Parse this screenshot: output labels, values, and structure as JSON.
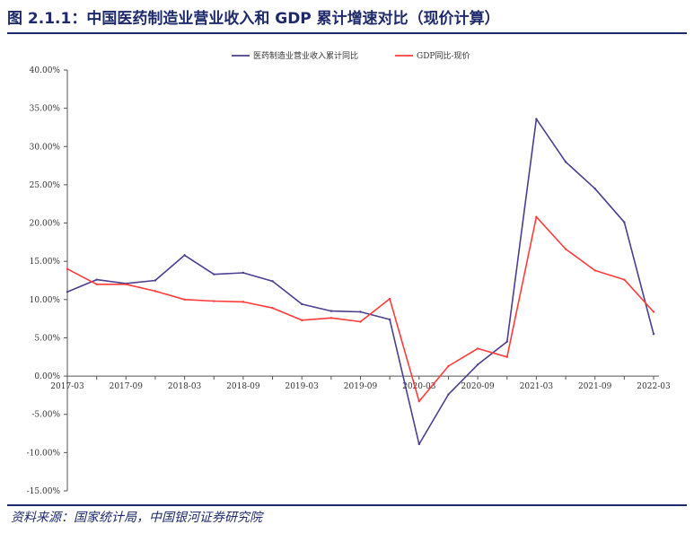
{
  "header": {
    "title": "图 2.1.1：中国医药制造业营业收入和 GDP 累计增速对比（现价计算）"
  },
  "footer": {
    "source": "资料来源：国家统计局，中国银河证券研究院"
  },
  "chart_data": {
    "type": "line",
    "x": [
      "2017-03",
      "2017-06",
      "2017-09",
      "2017-12",
      "2018-03",
      "2018-06",
      "2018-09",
      "2018-12",
      "2019-03",
      "2019-06",
      "2019-09",
      "2019-12",
      "2020-03",
      "2020-06",
      "2020-09",
      "2020-12",
      "2021-03",
      "2021-06",
      "2021-09",
      "2021-12",
      "2022-03"
    ],
    "xtick_labels": [
      "2017-03",
      "2017-09",
      "2018-03",
      "2018-09",
      "2019-03",
      "2019-09",
      "2020-03",
      "2020-09",
      "2021-03",
      "2021-09",
      "2022-03"
    ],
    "ylim": [
      -15,
      40
    ],
    "ytick_labels": [
      "40.00%",
      "35.00%",
      "30.00%",
      "25.00%",
      "20.00%",
      "15.00%",
      "10.00%",
      "5.00%",
      "0.00%",
      "-5.00%",
      "-10.00%",
      "-15.00%"
    ],
    "legend_position": "top",
    "grid": false,
    "series": [
      {
        "name": "医药制造业营业收入累计同比",
        "color": "#4b3f8f",
        "values": [
          11.0,
          12.6,
          12.1,
          12.5,
          15.8,
          13.3,
          13.5,
          12.4,
          9.4,
          8.5,
          8.4,
          7.4,
          -8.9,
          -2.4,
          1.5,
          4.5,
          33.6,
          28.0,
          24.5,
          20.1,
          5.5
        ]
      },
      {
        "name": "GDP同比-现价",
        "color": "#ff3b3b",
        "values": [
          14.0,
          12.0,
          12.0,
          11.1,
          10.0,
          9.8,
          9.7,
          8.9,
          7.3,
          7.6,
          7.1,
          10.1,
          -3.3,
          1.3,
          3.6,
          2.5,
          20.8,
          16.6,
          13.8,
          12.6,
          8.4
        ]
      }
    ]
  }
}
